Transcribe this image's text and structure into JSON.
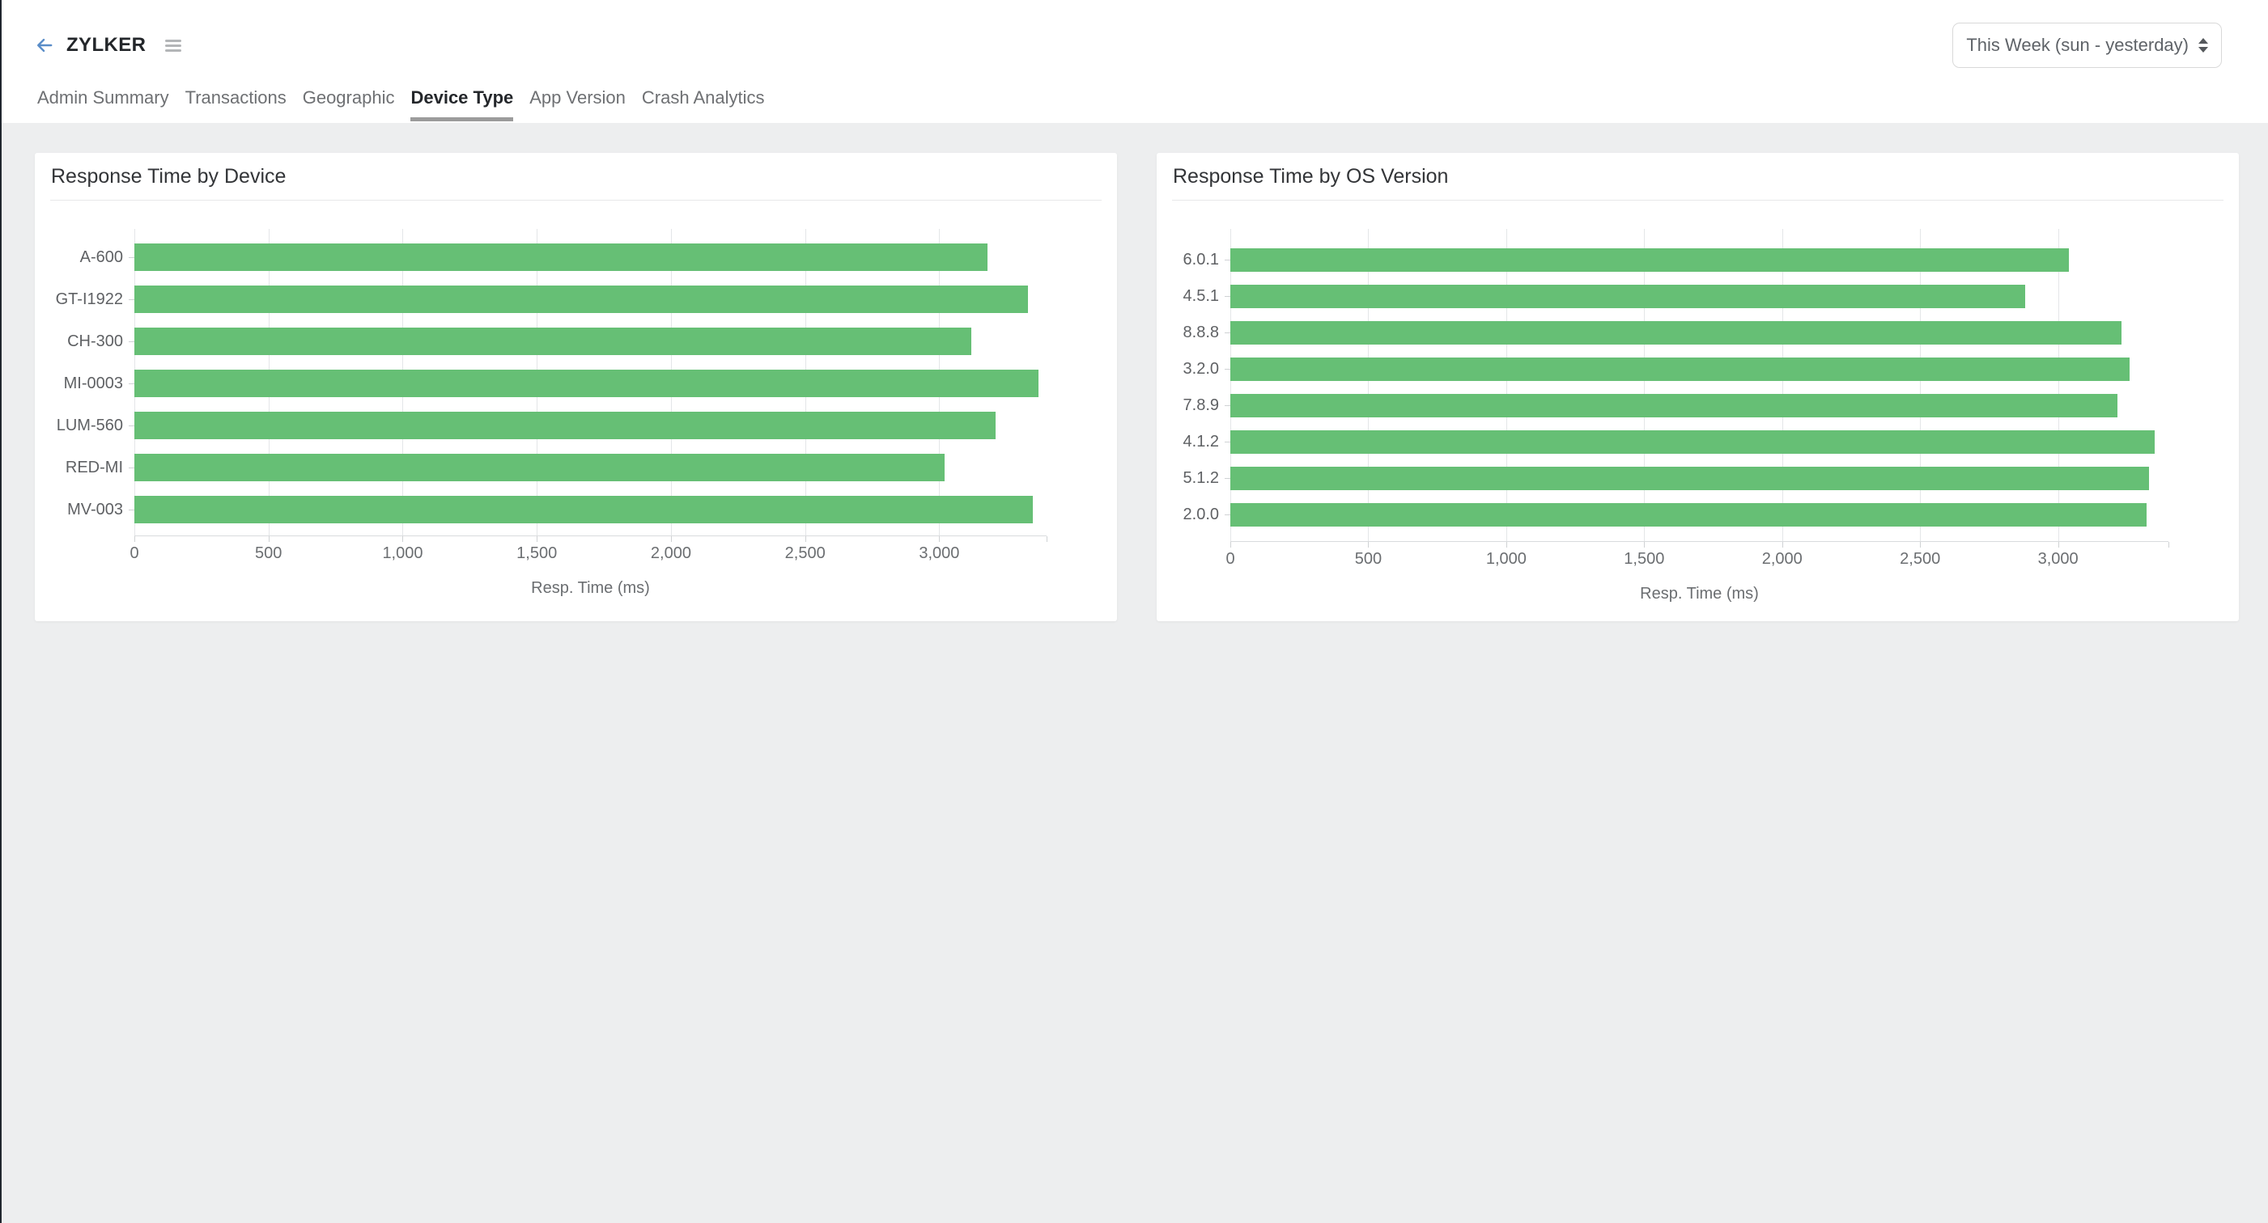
{
  "page": {
    "background_color": "#edeeef",
    "left_edge_color": "#20262e",
    "bar_green": "#66bf75"
  },
  "header": {
    "app_name": "ZYLKER",
    "back_icon": "arrow-left-icon",
    "menu_icon": "hamburger-menu-icon",
    "date_range_selector": {
      "value": "This Week (sun - yesterday)",
      "arrows_icon": "up-down-arrows-icon"
    }
  },
  "tabs": [
    {
      "label": "Admin Summary",
      "active": false
    },
    {
      "label": "Transactions",
      "active": false
    },
    {
      "label": "Geographic",
      "active": false
    },
    {
      "label": "Device Type",
      "active": true
    },
    {
      "label": "App Version",
      "active": false
    },
    {
      "label": "Crash Analytics",
      "active": false
    }
  ],
  "chart_data": [
    {
      "type": "bar",
      "orientation": "horizontal",
      "title": "Response Time by Device",
      "xlabel": "Resp. Time (ms)",
      "categories": [
        "A-600",
        "GT-I1922",
        "CH-300",
        "MI-0003",
        "LUM-560",
        "RED-MI",
        "MV-003"
      ],
      "values": [
        3180,
        3330,
        3120,
        3370,
        3210,
        3020,
        3350
      ],
      "bar_color": "#66bf75",
      "xlim": [
        0,
        3400
      ],
      "axis_max": 3400,
      "grid": "vertical",
      "legend": "none",
      "ticks": [
        {
          "label": "0",
          "value": 0
        },
        {
          "label": "500",
          "value": 500
        },
        {
          "label": "1,000",
          "value": 1000
        },
        {
          "label": "1,500",
          "value": 1500
        },
        {
          "label": "2,000",
          "value": 2000
        },
        {
          "label": "2,500",
          "value": 2500
        },
        {
          "label": "3,000",
          "value": 3000
        }
      ]
    },
    {
      "type": "bar",
      "orientation": "horizontal",
      "title": "Response Time by OS Version",
      "xlabel": "Resp. Time (ms)",
      "categories": [
        "6.0.1",
        "4.5.1",
        "8.8.8",
        "3.2.0",
        "7.8.9",
        "4.1.2",
        "5.1.2",
        "2.0.0"
      ],
      "values": [
        3040,
        2880,
        3230,
        3260,
        3215,
        3350,
        3330,
        3320
      ],
      "bar_color": "#66bf75",
      "xlim": [
        0,
        3400
      ],
      "axis_max": 3400,
      "grid": "vertical",
      "legend": "none",
      "ticks": [
        {
          "label": "0",
          "value": 0
        },
        {
          "label": "500",
          "value": 500
        },
        {
          "label": "1,000",
          "value": 1000
        },
        {
          "label": "1,500",
          "value": 1500
        },
        {
          "label": "2,000",
          "value": 2000
        },
        {
          "label": "2,500",
          "value": 2500
        },
        {
          "label": "3,000",
          "value": 3000
        }
      ]
    }
  ]
}
